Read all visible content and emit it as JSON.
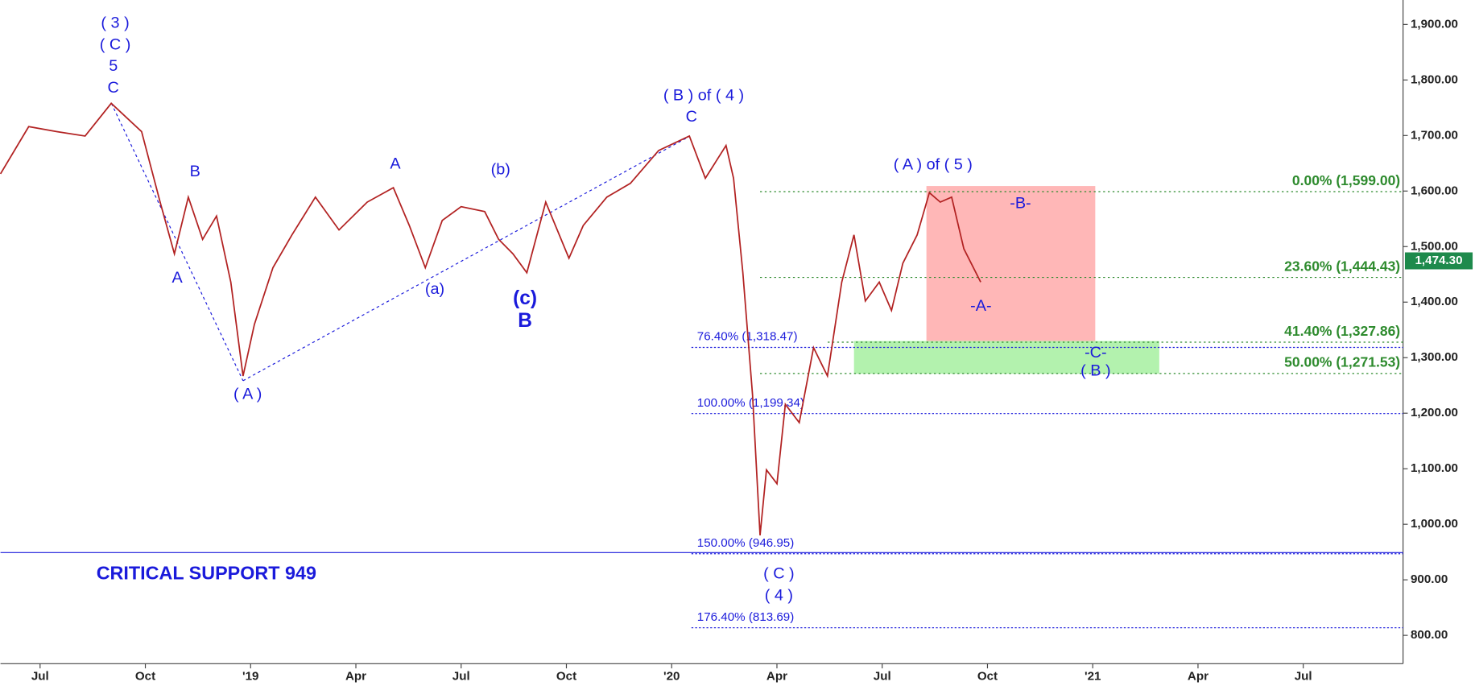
{
  "chart_data": {
    "type": "line",
    "color": "#b22222",
    "x": [
      2018.406,
      2018.473,
      2018.54,
      2018.607,
      2018.669,
      2018.741,
      2018.785,
      2018.819,
      2018.852,
      2018.886,
      2018.919,
      2018.953,
      2018.982,
      2019.009,
      2019.053,
      2019.098,
      2019.154,
      2019.21,
      2019.277,
      2019.339,
      2019.377,
      2019.415,
      2019.455,
      2019.5,
      2019.556,
      2019.589,
      2019.623,
      2019.656,
      2019.701,
      2019.756,
      2019.79,
      2019.846,
      2019.902,
      2019.969,
      2020.042,
      2020.08,
      2020.129,
      2020.147,
      2020.169,
      2020.192,
      2020.21,
      2020.225,
      2020.25,
      2020.27,
      2020.303,
      2020.337,
      2020.37,
      2020.404,
      2020.433,
      2020.46,
      2020.493,
      2020.522,
      2020.549,
      2020.583,
      2020.612,
      2020.638,
      2020.665,
      2020.694,
      2020.734
    ],
    "values": [
      1631,
      1716,
      1707,
      1699,
      1758,
      1707,
      1580,
      1487,
      1589,
      1513,
      1555,
      1436,
      1267,
      1360,
      1462,
      1521,
      1589,
      1530,
      1580,
      1606,
      1538,
      1462,
      1547,
      1572,
      1563,
      1513,
      1487,
      1453,
      1580,
      1479,
      1538,
      1589,
      1614,
      1673,
      1699,
      1623,
      1682,
      1623,
      1453,
      1233,
      980,
      1098,
      1073,
      1216,
      1183,
      1318,
      1267,
      1436,
      1521,
      1402,
      1436,
      1385,
      1470,
      1521,
      1597,
      1580,
      1589,
      1496,
      1436
    ],
    "xlim": [
      2018.406,
      2021.737
    ],
    "ylim": [
      749,
      1944
    ],
    "xticks": [
      {
        "value": 2018.5,
        "label": "Jul"
      },
      {
        "value": 2018.75,
        "label": "Oct"
      },
      {
        "value": 2019.0,
        "label": "'19"
      },
      {
        "value": 2019.25,
        "label": "Apr"
      },
      {
        "value": 2019.5,
        "label": "Jul"
      },
      {
        "value": 2019.75,
        "label": "Oct"
      },
      {
        "value": 2020.0,
        "label": "'20"
      },
      {
        "value": 2020.25,
        "label": "Apr"
      },
      {
        "value": 2020.5,
        "label": "Jul"
      },
      {
        "value": 2020.75,
        "label": "Oct"
      },
      {
        "value": 2021.0,
        "label": "'21"
      },
      {
        "value": 2021.25,
        "label": "Apr"
      },
      {
        "value": 2021.5,
        "label": "Jul"
      }
    ],
    "yticks": [
      {
        "value": 800,
        "label": "800.00"
      },
      {
        "value": 900,
        "label": "900.00"
      },
      {
        "value": 1000,
        "label": "1,000.00"
      },
      {
        "value": 1100,
        "label": "1,100.00"
      },
      {
        "value": 1200,
        "label": "1,200.00"
      },
      {
        "value": 1300,
        "label": "1,300.00"
      },
      {
        "value": 1400,
        "label": "1,400.00"
      },
      {
        "value": 1500,
        "label": "1,500.00"
      },
      {
        "value": 1600,
        "label": "1,600.00"
      },
      {
        "value": 1700,
        "label": "1,700.00"
      },
      {
        "value": 1800,
        "label": "1,800.00"
      },
      {
        "value": 1900,
        "label": "1,900.00"
      }
    ],
    "last_price": {
      "value": 1474.3,
      "label": "1,474.30",
      "color": "#1e8a4c"
    },
    "levels": [
      {
        "label": "0.00% (1,599.00)",
        "value": 1599.0,
        "color": "#2e8b2e"
      },
      {
        "label": "23.60% (1,444.43)",
        "value": 1444.43,
        "color": "#2e8b2e"
      },
      {
        "label": "41.40% (1,327.86)",
        "value": 1327.86,
        "color": "#2e8b2e"
      },
      {
        "label": "50.00% (1,271.53)",
        "value": 1271.53,
        "color": "#2e8b2e"
      },
      {
        "label": "76.40% (1,318.47)",
        "value": 1318.47,
        "color": "#1a1adb"
      },
      {
        "label": "100.00% (1,199.34)",
        "value": 1199.34,
        "color": "#1a1adb"
      },
      {
        "label": "150.00% (946.95)",
        "value": 946.95,
        "color": "#1a1adb"
      },
      {
        "label": "176.40% (813.69)",
        "value": 813.69,
        "color": "#1a1adb"
      }
    ],
    "support": {
      "label": "CRITICAL SUPPORT 949",
      "value": 949,
      "color": "#1a1adb"
    },
    "zones": [
      {
        "color": "#ffaaaa",
        "x": [
          2020.605,
          2021.006
        ],
        "y": [
          1330,
          1609
        ]
      },
      {
        "color": "#a6f0a0",
        "x": [
          2020.433,
          2021.158
        ],
        "y": [
          1271,
          1330
        ]
      }
    ],
    "annotations": [
      "( 3 )",
      "( C )",
      "5",
      "C",
      "B",
      "A",
      "( A )",
      "A",
      "(a)",
      "(b)",
      "(c)",
      "B",
      "( B ) of ( 4 )",
      "C",
      "( A ) of ( 5 )",
      "-B-",
      "-A-",
      "-C-",
      "( B )",
      "( C )",
      "( 4 )"
    ]
  }
}
